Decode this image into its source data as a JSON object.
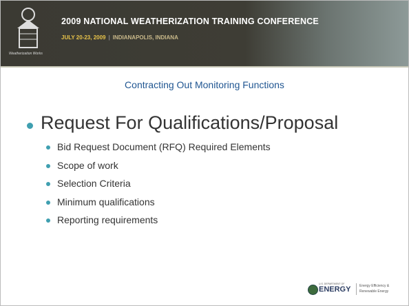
{
  "header": {
    "title": "2009 NATIONAL WEATHERIZATION TRAINING CONFERENCE",
    "dates": "JULY 20-23, 2009",
    "location": "INDIANAPOLIS, INDIANA",
    "logo_text": "Weatherization Works"
  },
  "slide": {
    "title": "Contracting Out Monitoring Functions",
    "main_bullet": "Request For Qualifications/Proposal",
    "sub_bullets": [
      "Bid Request Document (RFQ) Required Elements",
      "Scope of work",
      "Selection Criteria",
      "Minimum qualifications",
      "Reporting requirements"
    ]
  },
  "footer": {
    "department": "U.S. DEPARTMENT OF",
    "agency": "ENERGY",
    "office_line1": "Energy Efficiency &",
    "office_line2": "Renewable Energy"
  }
}
